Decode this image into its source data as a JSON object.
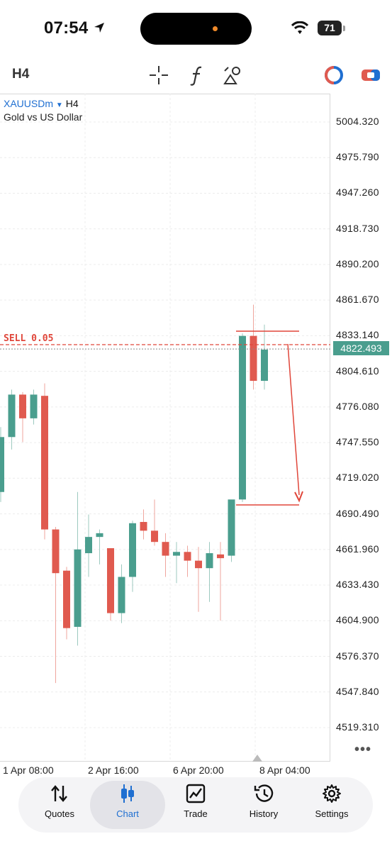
{
  "status": {
    "time": "07:54",
    "battery": "71"
  },
  "toolbar": {
    "timeframe": "H4"
  },
  "chart": {
    "symbol": "XAUUSDm",
    "timeframe": "H4",
    "description": "Gold vs US Dollar",
    "price_labels": [
      "5004.320",
      "4975.790",
      "4947.260",
      "4918.730",
      "4890.200",
      "4861.670",
      "4833.140",
      "4804.610",
      "4776.080",
      "4747.550",
      "4719.020",
      "4690.490",
      "4661.960",
      "4633.430",
      "4604.900",
      "4576.370",
      "4547.840",
      "4519.310"
    ],
    "current_price": "4822.493",
    "order_label": "SELL 0.05",
    "time_labels": [
      "1 Apr 08:00",
      "2 Apr 16:00",
      "6 Apr 20:00",
      "8 Apr 04:00"
    ],
    "colors": {
      "bull": "#4a9e8e",
      "bear": "#e05a4f",
      "line": "#e0463a"
    }
  },
  "chart_data": {
    "type": "candlestick",
    "title": "XAUUSDm, H4",
    "x_labels": [
      "1 Apr 08:00",
      "2 Apr 16:00",
      "6 Apr 20:00",
      "8 Apr 04:00"
    ],
    "ylim": [
      4505,
      5015
    ],
    "candles": [
      {
        "o": 4708,
        "h": 4760,
        "l": 4700,
        "c": 4752
      },
      {
        "o": 4752,
        "h": 4790,
        "l": 4742,
        "c": 4786
      },
      {
        "o": 4786,
        "h": 4788,
        "l": 4748,
        "c": 4767
      },
      {
        "o": 4767,
        "h": 4790,
        "l": 4762,
        "c": 4786
      },
      {
        "o": 4785,
        "h": 4795,
        "l": 4670,
        "c": 4678
      },
      {
        "o": 4678,
        "h": 4680,
        "l": 4555,
        "c": 4643
      },
      {
        "o": 4645,
        "h": 4648,
        "l": 4590,
        "c": 4599
      },
      {
        "o": 4600,
        "h": 4708,
        "l": 4585,
        "c": 4662
      },
      {
        "o": 4659,
        "h": 4690,
        "l": 4640,
        "c": 4672
      },
      {
        "o": 4672,
        "h": 4678,
        "l": 4650,
        "c": 4675
      },
      {
        "o": 4663,
        "h": 4663,
        "l": 4605,
        "c": 4611
      },
      {
        "o": 4611,
        "h": 4650,
        "l": 4603,
        "c": 4640
      },
      {
        "o": 4640,
        "h": 4685,
        "l": 4628,
        "c": 4683
      },
      {
        "o": 4684,
        "h": 4694,
        "l": 4670,
        "c": 4677
      },
      {
        "o": 4677,
        "h": 4702,
        "l": 4665,
        "c": 4668
      },
      {
        "o": 4668,
        "h": 4675,
        "l": 4640,
        "c": 4657
      },
      {
        "o": 4657,
        "h": 4668,
        "l": 4635,
        "c": 4660
      },
      {
        "o": 4660,
        "h": 4665,
        "l": 4640,
        "c": 4653
      },
      {
        "o": 4653,
        "h": 4664,
        "l": 4612,
        "c": 4647
      },
      {
        "o": 4647,
        "h": 4668,
        "l": 4620,
        "c": 4659
      },
      {
        "o": 4658,
        "h": 4668,
        "l": 4605,
        "c": 4655
      },
      {
        "o": 4657,
        "h": 4698,
        "l": 4652,
        "c": 4702
      },
      {
        "o": 4702,
        "h": 4835,
        "l": 4700,
        "c": 4833
      },
      {
        "o": 4833,
        "h": 4858,
        "l": 4790,
        "c": 4797
      },
      {
        "o": 4797,
        "h": 4842,
        "l": 4790,
        "c": 4822
      }
    ],
    "sell_order": 4826,
    "current": 4822.493
  },
  "nav": [
    {
      "label": "Quotes",
      "icon": "quotes-icon"
    },
    {
      "label": "Chart",
      "icon": "chart-icon"
    },
    {
      "label": "Trade",
      "icon": "trade-icon"
    },
    {
      "label": "History",
      "icon": "history-icon"
    },
    {
      "label": "Settings",
      "icon": "settings-icon"
    }
  ]
}
